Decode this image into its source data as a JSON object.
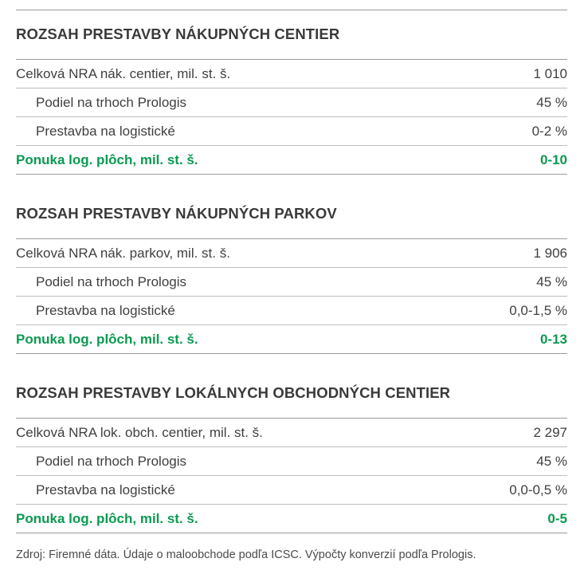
{
  "sections": [
    {
      "title": "ROZSAH PRESTAVBY NÁKUPNÝCH CENTIER",
      "rows": [
        {
          "label": "Celková NRA nák. centier, mil. st. š.",
          "value": "1 010"
        },
        {
          "label": "Podiel na trhoch Prologis",
          "value": "45 %"
        },
        {
          "label": "Prestavba na logistické",
          "value": "0-2 %"
        }
      ],
      "total": {
        "label": "Ponuka log. plôch, mil. st. š.",
        "value": "0-10"
      }
    },
    {
      "title": "ROZSAH PRESTAVBY NÁKUPNÝCH PARKOV",
      "rows": [
        {
          "label": "Celková NRA nák. parkov, mil. st. š.",
          "value": "1 906"
        },
        {
          "label": "Podiel na trhoch Prologis",
          "value": "45 %"
        },
        {
          "label": "Prestavba na logistické",
          "value": "0,0-1,5 %"
        }
      ],
      "total": {
        "label": "Ponuka log. plôch, mil. st. š.",
        "value": "0-13"
      }
    },
    {
      "title": "ROZSAH PRESTAVBY LOKÁLNYCH OBCHODNÝCH CENTIER",
      "rows": [
        {
          "label": "Celková NRA lok. obch. centier, mil. st. š.",
          "value": "2 297"
        },
        {
          "label": "Podiel na trhoch Prologis",
          "value": "45 %"
        },
        {
          "label": "Prestavba na logistické",
          "value": "0,0-0,5 %"
        }
      ],
      "total": {
        "label": "Ponuka log. plôch, mil. st. š.",
        "value": "0-5"
      }
    }
  ],
  "source": "Zdroj: Firemné dáta. Údaje o maloobchode podľa ICSC. Výpočty konverzií podľa Prologis.",
  "colors": {
    "accent": "#0a9a50",
    "text": "#3a3a3a",
    "rule": "#9a9a9a"
  }
}
